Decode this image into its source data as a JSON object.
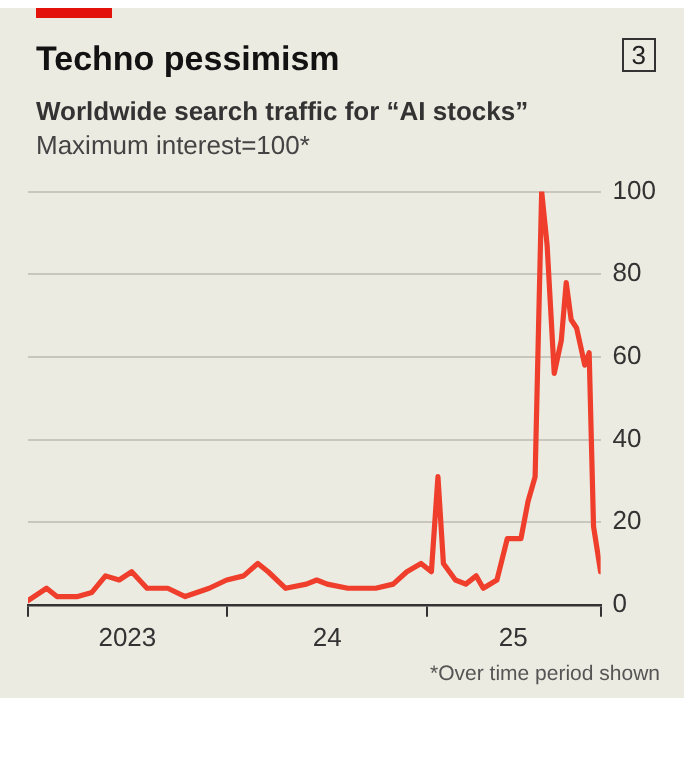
{
  "chart_data": {
    "type": "line",
    "title": "Techno pessimism",
    "subtitle": "Worldwide search traffic for “AI stocks”",
    "ylabel": "Maximum interest=100*",
    "annotations": [
      "3",
      "*Over time period shown"
    ],
    "x": [
      "2023-01-01",
      "2023-02-04",
      "2023-02-23",
      "2023-04-02",
      "2023-04-28",
      "2023-05-23",
      "2023-06-17",
      "2023-07-10",
      "2023-08-07",
      "2023-09-14",
      "2023-10-16",
      "2023-11-29",
      "2023-12-31",
      "2024-01-31",
      "2024-02-26",
      "2024-03-16",
      "2024-04-17",
      "2024-05-25",
      "2024-06-13",
      "2024-07-02",
      "2024-08-09",
      "2024-09-29",
      "2024-10-31",
      "2024-11-25",
      "2024-12-21",
      "2025-01-09",
      "2025-01-21",
      "2025-01-31",
      "2025-02-22",
      "2025-03-13",
      "2025-04-01",
      "2025-04-14",
      "2025-05-09",
      "2025-05-28",
      "2025-06-22",
      "2025-07-05",
      "2025-07-18",
      "2025-07-30",
      "2025-08-09",
      "2025-08-22",
      "2025-09-04",
      "2025-09-13",
      "2025-09-22",
      "2025-10-02",
      "2025-10-17",
      "2025-10-25",
      "2025-11-02",
      "2025-11-15"
    ],
    "series": [
      {
        "color": "#ef3e2c",
        "values": [
          1,
          4,
          2,
          2,
          3,
          7,
          6,
          8,
          4,
          4,
          2,
          4,
          6,
          7,
          10,
          8,
          4,
          5,
          6,
          5,
          4,
          4,
          5,
          8,
          10,
          8,
          31,
          10,
          6,
          5,
          7,
          4,
          6,
          16,
          16,
          25,
          31,
          100,
          87,
          56,
          64,
          78,
          69,
          67,
          58,
          61,
          19,
          8
        ]
      }
    ],
    "xlim": [
      "2023-01-01",
      "2025-11-15"
    ],
    "xticks": [
      {
        "value": "2023-01-01",
        "label": null
      },
      {
        "value": "2023-07-02",
        "label": "2023"
      },
      {
        "value": "2024-01-01",
        "label": null
      },
      {
        "value": "2024-07-02",
        "label": "24"
      },
      {
        "value": "2025-01-01",
        "label": null
      },
      {
        "value": "2025-06-08",
        "label": "25"
      },
      {
        "value": "2025-11-15",
        "label": null
      }
    ],
    "ylim": [
      0,
      100
    ],
    "yticks": [
      0,
      20,
      40,
      60,
      80,
      100
    ],
    "grid": "y",
    "marker": "none",
    "line_style": "solid"
  }
}
